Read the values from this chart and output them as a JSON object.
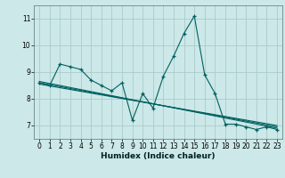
{
  "title": "",
  "xlabel": "Humidex (Indice chaleur)",
  "ylabel": "",
  "bg_color": "#cce8e8",
  "grid_color": "#aacccc",
  "line_color": "#006060",
  "xlim": [
    -0.5,
    23.5
  ],
  "ylim": [
    6.5,
    11.5
  ],
  "yticks": [
    7,
    8,
    9,
    10,
    11
  ],
  "xticks": [
    0,
    1,
    2,
    3,
    4,
    5,
    6,
    7,
    8,
    9,
    10,
    11,
    12,
    13,
    14,
    15,
    16,
    17,
    18,
    19,
    20,
    21,
    22,
    23
  ],
  "series1_x": [
    0,
    1,
    2,
    3,
    4,
    5,
    6,
    7,
    8,
    9,
    10,
    11,
    12,
    13,
    14,
    15,
    16,
    17,
    18,
    19,
    20,
    21,
    22,
    23
  ],
  "series1_y": [
    8.6,
    8.5,
    9.3,
    9.2,
    9.1,
    8.7,
    8.5,
    8.3,
    8.6,
    7.2,
    8.2,
    7.65,
    8.85,
    9.6,
    10.45,
    11.1,
    8.9,
    8.2,
    7.05,
    7.05,
    6.95,
    6.85,
    6.95,
    6.85
  ],
  "series2_x": [
    0,
    23
  ],
  "series2_y": [
    8.65,
    6.9
  ],
  "series3_x": [
    0,
    23
  ],
  "series3_y": [
    8.6,
    6.95
  ],
  "series4_x": [
    0,
    23
  ],
  "series4_y": [
    8.55,
    7.0
  ],
  "tick_fontsize": 5.5,
  "xlabel_fontsize": 6.5
}
